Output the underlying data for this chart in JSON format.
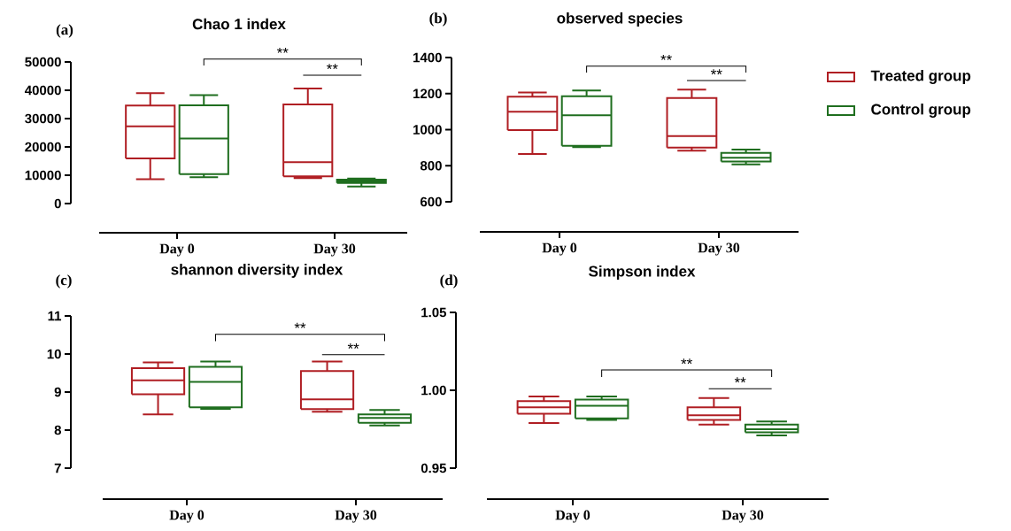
{
  "chart_data": [
    {
      "type": "box",
      "title": "Chao 1 index",
      "categories": [
        "Day 0",
        "Day 30"
      ],
      "ylim": [
        0,
        50000
      ],
      "yticks": [
        0,
        10000,
        20000,
        30000,
        40000,
        50000
      ],
      "annotations": [
        "(a)",
        "**",
        "**"
      ],
      "series": [
        {
          "color": "#b01e23",
          "boxes": [
            {
              "low": 8600,
              "q1": 15900,
              "median": 27300,
              "q3": 34600,
              "high": 39000
            },
            {
              "low": 9000,
              "q1": 9600,
              "median": 14600,
              "q3": 35000,
              "high": 40600
            }
          ]
        },
        {
          "color": "#1f6e1f",
          "boxes": [
            {
              "low": 9300,
              "q1": 10400,
              "median": 23000,
              "q3": 34700,
              "high": 38300
            },
            {
              "low": 6000,
              "q1": 7300,
              "median": 7800,
              "q3": 8400,
              "high": 8800
            }
          ]
        }
      ]
    },
    {
      "type": "box",
      "title": "observed species",
      "categories": [
        "Day 0",
        "Day 30"
      ],
      "ylim": [
        600,
        1400
      ],
      "yticks": [
        600,
        800,
        1000,
        1200,
        1400
      ],
      "annotations": [
        "(b)",
        "**",
        "**"
      ],
      "legend": "right",
      "series": [
        {
          "name": "Treated group",
          "color": "#b01e23",
          "boxes": [
            {
              "low": 865,
              "q1": 998,
              "median": 1100,
              "q3": 1183,
              "high": 1206
            },
            {
              "low": 884,
              "q1": 901,
              "median": 965,
              "q3": 1175,
              "high": 1222
            }
          ]
        },
        {
          "name": "Control group",
          "color": "#1f6e1f",
          "boxes": [
            {
              "low": 903,
              "q1": 910,
              "median": 1080,
              "q3": 1185,
              "high": 1217
            },
            {
              "low": 807,
              "q1": 823,
              "median": 844,
              "q3": 871,
              "high": 890
            }
          ]
        }
      ]
    },
    {
      "type": "box",
      "title": "shannon diversity index",
      "categories": [
        "Day 0",
        "Day 30"
      ],
      "ylim": [
        7,
        11
      ],
      "yticks": [
        7,
        8,
        9,
        10,
        11
      ],
      "annotations": [
        "(c)",
        "**",
        "**"
      ],
      "series": [
        {
          "color": "#b01e23",
          "boxes": [
            {
              "low": 8.41,
              "q1": 8.94,
              "median": 9.31,
              "q3": 9.63,
              "high": 9.78
            },
            {
              "low": 8.48,
              "q1": 8.55,
              "median": 8.81,
              "q3": 9.55,
              "high": 9.8
            }
          ]
        },
        {
          "color": "#1f6e1f",
          "boxes": [
            {
              "low": 8.56,
              "q1": 8.6,
              "median": 9.27,
              "q3": 9.66,
              "high": 9.8
            },
            {
              "low": 8.12,
              "q1": 8.19,
              "median": 8.32,
              "q3": 8.41,
              "high": 8.53
            }
          ]
        }
      ]
    },
    {
      "type": "box",
      "title": "Simpson index",
      "categories": [
        "Day 0",
        "Day 30"
      ],
      "ylim": [
        0.95,
        1.05
      ],
      "yticks": [
        0.95,
        {
          "value": 1,
          "label": "1.00"
        },
        1.05
      ],
      "annotations": [
        "(d)",
        "**",
        "**"
      ],
      "series": [
        {
          "color": "#b01e23",
          "boxes": [
            {
              "low": 0.979,
              "q1": 0.985,
              "median": 0.989,
              "q3": 0.993,
              "high": 0.996
            },
            {
              "low": 0.978,
              "q1": 0.981,
              "median": 0.984,
              "q3": 0.989,
              "high": 0.995
            }
          ]
        },
        {
          "color": "#1f6e1f",
          "boxes": [
            {
              "low": 0.981,
              "q1": 0.982,
              "median": 0.99,
              "q3": 0.994,
              "high": 0.996
            },
            {
              "low": 0.971,
              "q1": 0.973,
              "median": 0.975,
              "q3": 0.978,
              "high": 0.98
            }
          ]
        }
      ]
    }
  ]
}
